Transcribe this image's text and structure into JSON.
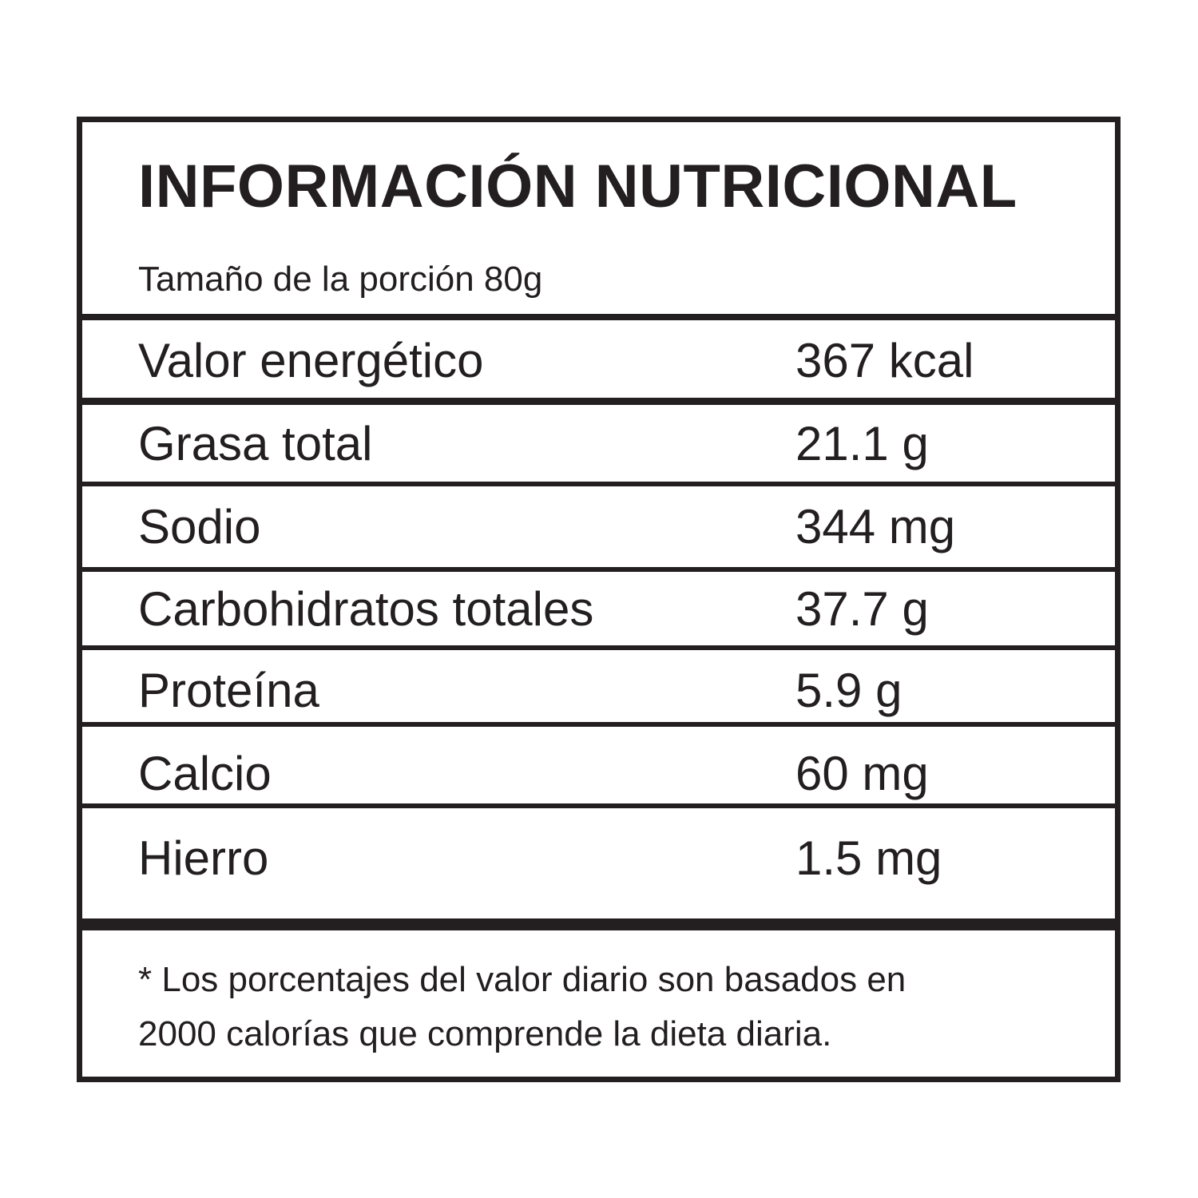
{
  "title": "INFORMACIÓN NUTRICIONAL",
  "serving_size": "Tamaño de la porción 80g",
  "rows": [
    {
      "label": "Valor energético",
      "value": "367 kcal"
    },
    {
      "label": "Grasa  total",
      "value": "21.1 g"
    },
    {
      "label": "Sodio",
      "value": "344 mg"
    },
    {
      "label": "Carbohidratos totales",
      "value": "37.7 g"
    },
    {
      "label": "Proteína",
      "value": "5.9 g"
    },
    {
      "label": "Calcio",
      "value": "60 mg"
    },
    {
      "label": "Hierro",
      "value": "1.5 mg"
    }
  ],
  "footnote": {
    "line1": "* Los porcentajes del valor diario son basados en",
    "line2": "2000 calorías que comprende la dieta diaria."
  }
}
